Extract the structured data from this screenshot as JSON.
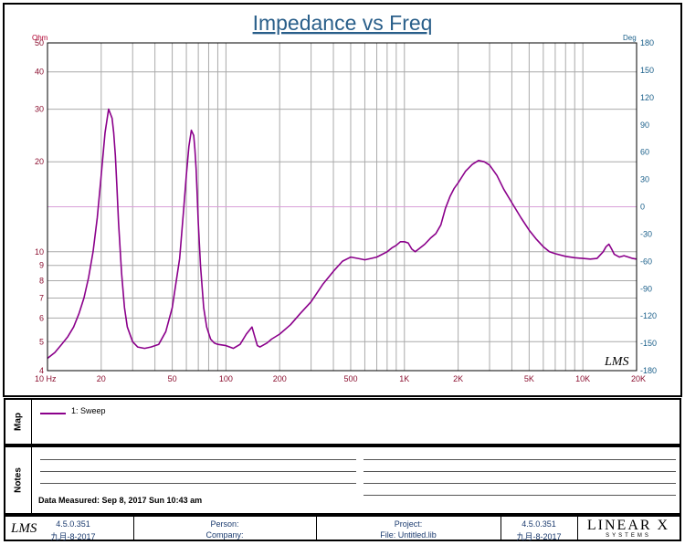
{
  "chart_data": {
    "type": "line",
    "title": "Impedance vs Freq",
    "ylabel_left_unit": "Ohm",
    "ylabel_right_unit": "Deg",
    "x_scale": "log",
    "y_scale": "log",
    "xlim": [
      10,
      20000
    ],
    "ylim": [
      4,
      50
    ],
    "y2lim": [
      -180,
      180
    ],
    "x_ticks": [
      {
        "v": 10,
        "label": "10  Hz"
      },
      {
        "v": 20,
        "label": "20"
      },
      {
        "v": 50,
        "label": "50"
      },
      {
        "v": 100,
        "label": "100"
      },
      {
        "v": 200,
        "label": "200"
      },
      {
        "v": 500,
        "label": "500"
      },
      {
        "v": 1000,
        "label": "1K"
      },
      {
        "v": 2000,
        "label": "2K"
      },
      {
        "v": 5000,
        "label": "5K"
      },
      {
        "v": 10000,
        "label": "10K"
      },
      {
        "v": 20000,
        "label": "20K"
      }
    ],
    "y_ticks": [
      {
        "v": 4,
        "label": "4"
      },
      {
        "v": 5,
        "label": "5"
      },
      {
        "v": 6,
        "label": "6"
      },
      {
        "v": 7,
        "label": "7"
      },
      {
        "v": 8,
        "label": "8"
      },
      {
        "v": 9,
        "label": "9"
      },
      {
        "v": 10,
        "label": "10"
      },
      {
        "v": 20,
        "label": "20"
      },
      {
        "v": 30,
        "label": "30"
      },
      {
        "v": 40,
        "label": "40"
      },
      {
        "v": 50,
        "label": "50"
      }
    ],
    "y2_ticks": [
      {
        "v": -180,
        "label": "-180"
      },
      {
        "v": -150,
        "label": "-150"
      },
      {
        "v": -120,
        "label": "-120"
      },
      {
        "v": -90,
        "label": "-90"
      },
      {
        "v": -60,
        "label": "-60"
      },
      {
        "v": -30,
        "label": "-30"
      },
      {
        "v": 0,
        "label": "0"
      },
      {
        "v": 30,
        "label": "30"
      },
      {
        "v": 60,
        "label": "60"
      },
      {
        "v": 90,
        "label": "90"
      },
      {
        "v": 120,
        "label": "120"
      },
      {
        "v": 150,
        "label": "150"
      },
      {
        "v": 180,
        "label": "180"
      }
    ],
    "reference_line_deg": 0,
    "grid": true,
    "watermark": "LMS",
    "series": [
      {
        "name": "1: Sweep",
        "color": "#8b008b",
        "x": [
          10,
          11,
          12,
          13,
          14,
          15,
          16,
          17,
          18,
          19,
          20,
          21,
          22,
          23,
          23.5,
          24,
          24.5,
          25,
          26,
          27,
          28,
          30,
          32,
          35,
          38,
          42,
          46,
          50,
          55,
          58,
          60,
          62,
          64,
          66,
          67,
          68,
          69,
          70,
          72,
          75,
          78,
          82,
          86,
          90,
          100,
          110,
          120,
          130,
          140,
          145,
          150,
          155,
          160,
          170,
          180,
          200,
          230,
          260,
          300,
          350,
          400,
          450,
          500,
          550,
          600,
          650,
          700,
          750,
          800,
          850,
          900,
          950,
          1000,
          1050,
          1100,
          1150,
          1200,
          1300,
          1400,
          1500,
          1600,
          1700,
          1800,
          1900,
          2000,
          2200,
          2400,
          2600,
          2800,
          3000,
          3300,
          3600,
          4000,
          4500,
          5000,
          5500,
          6000,
          6500,
          7000,
          8000,
          9000,
          10000,
          11000,
          12000,
          13000,
          13500,
          14000,
          14500,
          15000,
          16000,
          17000,
          18000,
          19000,
          20000
        ],
        "values": [
          4.4,
          4.6,
          4.9,
          5.2,
          5.6,
          6.2,
          7.0,
          8.2,
          10.0,
          13.0,
          18.0,
          25.0,
          30.0,
          28.0,
          25.0,
          21.0,
          16.5,
          12.5,
          8.5,
          6.5,
          5.6,
          5.0,
          4.8,
          4.75,
          4.8,
          4.9,
          5.4,
          6.5,
          9.5,
          14.0,
          18.0,
          22.5,
          25.5,
          24.5,
          22.0,
          19.0,
          15.5,
          12.5,
          9.0,
          6.5,
          5.6,
          5.1,
          4.95,
          4.9,
          4.85,
          4.75,
          4.9,
          5.3,
          5.6,
          5.2,
          4.85,
          4.8,
          4.85,
          4.95,
          5.1,
          5.3,
          5.7,
          6.2,
          6.8,
          7.8,
          8.6,
          9.3,
          9.6,
          9.5,
          9.4,
          9.5,
          9.6,
          9.8,
          10.0,
          10.3,
          10.5,
          10.8,
          10.8,
          10.7,
          10.2,
          10.0,
          10.2,
          10.6,
          11.1,
          11.5,
          12.3,
          14.0,
          15.3,
          16.3,
          17.0,
          18.6,
          19.6,
          20.2,
          20.0,
          19.5,
          18.0,
          16.2,
          14.6,
          13.0,
          11.8,
          11.0,
          10.4,
          10.0,
          9.85,
          9.65,
          9.55,
          9.5,
          9.45,
          9.5,
          10.0,
          10.4,
          10.6,
          10.2,
          9.8,
          9.6,
          9.7,
          9.6,
          9.5,
          9.45
        ]
      }
    ]
  },
  "map_panel": {
    "label": "Map",
    "legend_entry": "1: Sweep"
  },
  "notes_panel": {
    "label": "Notes",
    "measured": "Data Measured: Sep 8, 2017 Sun 10:43 am"
  },
  "footer": {
    "version_left": "4.5.0.351",
    "date_left": "九月-8-2017",
    "person_label": "Person:",
    "company_label": "Company:",
    "project_label": "Project:",
    "file_label": "File: Untitled.lib",
    "version_right": "4.5.0.351",
    "date_right": "九月-8-2017",
    "logo_left": "LMS",
    "logo_right": "LINEAR X",
    "logo_right_sub": "SYSTEMS"
  }
}
